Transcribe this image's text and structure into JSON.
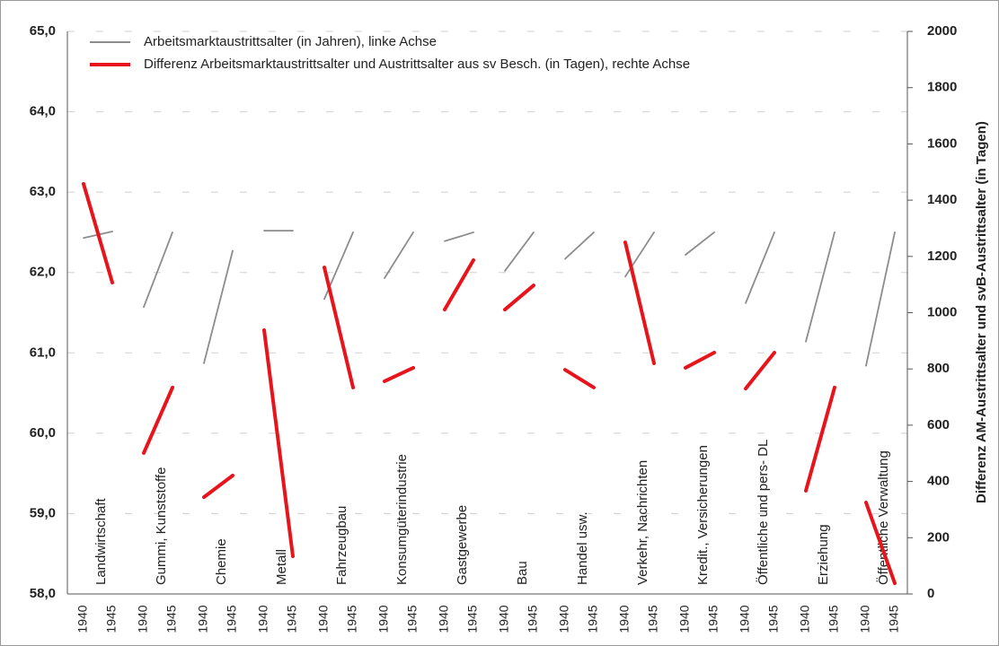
{
  "chart_data": {
    "type": "line",
    "categories": [
      "Landwirtschaft",
      "Gummi, Kunststoffe",
      "Chemie",
      "Metall",
      "Fahrzeugbau",
      "Konsumgüterindustrie",
      "Gastgewerbe",
      "Bau",
      "Handel usw.",
      "Verkehr, Nachrichten",
      "Kredit., Versicherungen",
      "Öffentliche und pers- DL",
      "Erziehung",
      "Öffentliche Verwaltung"
    ],
    "x": [
      "1940",
      "1945",
      "1940",
      "1945",
      "1940",
      "1945",
      "1940",
      "1945",
      "1940",
      "1945",
      "1940",
      "1945",
      "1940",
      "1945",
      "1940",
      "1945",
      "1940",
      "1945",
      "1940",
      "1945",
      "1940",
      "1945",
      "1940",
      "1945",
      "1940",
      "1945",
      "1940",
      "1945"
    ],
    "series": [
      {
        "name": "Arbeitsmarktaustrittsalter (in Jahren), linke Achse",
        "color": "#8c8c8c",
        "axis": "y",
        "values": [
          62.43,
          62.51,
          61.57,
          62.5,
          60.87,
          62.27,
          62.52,
          62.52,
          61.67,
          62.5,
          61.93,
          62.5,
          62.39,
          62.5,
          62.02,
          62.5,
          62.17,
          62.5,
          61.95,
          62.5,
          62.22,
          62.5,
          61.62,
          62.5,
          61.14,
          62.5,
          60.84,
          62.5
        ]
      },
      {
        "name": "Differenz Arbeitsmarktaustrittsalter und Austrittsalter aus sv Besch. (in Tagen), rechte Achse",
        "color": "#e8141b",
        "axis": "y2",
        "values": [
          1458,
          1107,
          501,
          734,
          344,
          421,
          938,
          134,
          1161,
          734,
          756,
          804,
          1011,
          1187,
          1011,
          1097,
          797,
          734,
          1250,
          820,
          804,
          858,
          730,
          858,
          367,
          734,
          325,
          38
        ]
      }
    ],
    "ylim": [
      58,
      65
    ],
    "yticks": [
      {
        "value": 58,
        "label": "58,0"
      },
      {
        "value": 59,
        "label": "59,0"
      },
      {
        "value": 60,
        "label": "60,0"
      },
      {
        "value": 61,
        "label": "61,0"
      },
      {
        "value": 62,
        "label": "62,0"
      },
      {
        "value": 63,
        "label": "63,0"
      },
      {
        "value": 64,
        "label": "64,0"
      },
      {
        "value": 65,
        "label": "65,0"
      }
    ],
    "y2lim": [
      0,
      2000
    ],
    "y2ticks": [
      0,
      200,
      400,
      600,
      800,
      1000,
      1200,
      1400,
      1600,
      1800,
      2000
    ],
    "y2label": "Differenz  AM-Austrittsalter und svB-Austrittsalter (in Tagen)",
    "grid": true
  }
}
